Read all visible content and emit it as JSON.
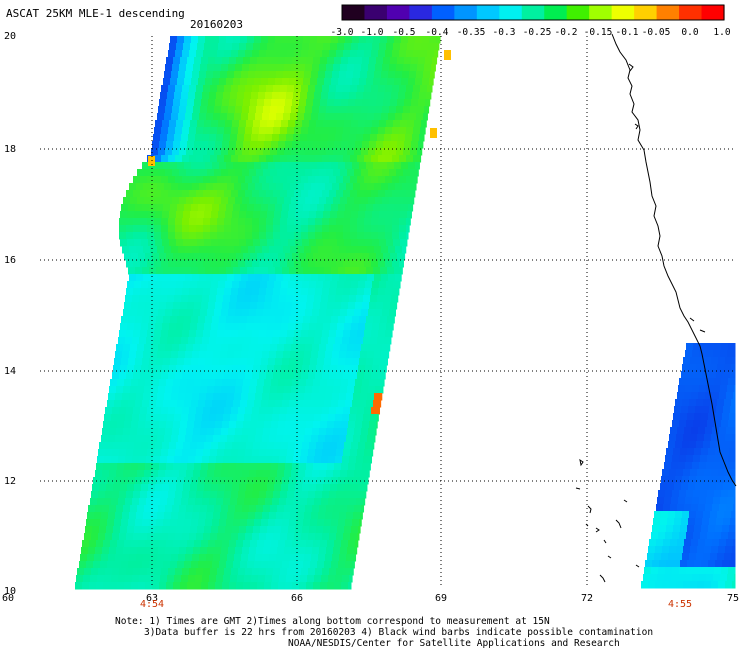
{
  "header": {
    "title": "ASCAT 25KM MLE-1 descending",
    "date": "20160203"
  },
  "colorbar": {
    "labels": [
      "-3.0",
      "-1.0",
      "-0.5",
      "-0.4",
      "-0.35",
      "-0.3",
      "-0.25",
      "-0.2",
      "-0.15",
      "-0.1",
      "-0.05",
      "0.0",
      "1.0"
    ],
    "colors": [
      "#200020",
      "#3a0070",
      "#5000b0",
      "#2a28e0",
      "#0060ff",
      "#0095ff",
      "#00c8ff",
      "#00f0f0",
      "#00f0a0",
      "#00ee50",
      "#40f000",
      "#a0ff00",
      "#eeff00",
      "#ffd000",
      "#ff8000",
      "#ff3000",
      "#ff0000"
    ]
  },
  "axes": {
    "x_ticks": [
      "60",
      "63",
      "66",
      "69",
      "72",
      "75"
    ],
    "y_ticks": [
      "20",
      "18",
      "16",
      "14",
      "12",
      "10"
    ]
  },
  "pass_times": [
    "4:54",
    "4:55"
  ],
  "notes": [
    "Note: 1) Times are GMT 2)Times along bottom correspond to measurement at 15N",
    "3)Data buffer is 22 hrs from 20160203 4) Black wind barbs indicate possible contamination",
    "NOAA/NESDIS/Center for Satellite Applications and Research"
  ]
}
